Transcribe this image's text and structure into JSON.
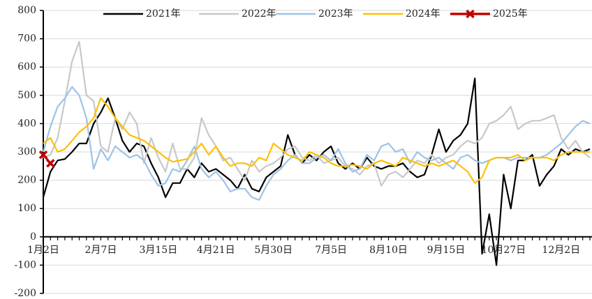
{
  "chart_data": {
    "type": "line",
    "categories": [
      "1月2日",
      null,
      null,
      null,
      null,
      null,
      null,
      null,
      "2月7日",
      null,
      null,
      null,
      null,
      null,
      null,
      null,
      "3月15日",
      null,
      null,
      null,
      null,
      null,
      null,
      null,
      "4月21日",
      null,
      null,
      null,
      null,
      null,
      null,
      null,
      "5月30日",
      null,
      null,
      null,
      null,
      null,
      null,
      null,
      "7月5日",
      null,
      null,
      null,
      null,
      null,
      null,
      null,
      "8月10日",
      null,
      null,
      null,
      null,
      null,
      null,
      null,
      "9月15日",
      null,
      null,
      null,
      null,
      null,
      null,
      null,
      "10月27日",
      null,
      null,
      null,
      null,
      null,
      null,
      null,
      "12月2日",
      null,
      null,
      null,
      null
    ],
    "series": [
      {
        "name": "2021年",
        "color": "#000000",
        "values": [
          140,
          230,
          270,
          275,
          300,
          330,
          330,
          400,
          440,
          490,
          420,
          340,
          300,
          330,
          320,
          260,
          210,
          140,
          190,
          190,
          240,
          210,
          260,
          230,
          240,
          220,
          200,
          170,
          220,
          170,
          160,
          210,
          230,
          250,
          360,
          290,
          260,
          290,
          270,
          300,
          320,
          260,
          240,
          260,
          240,
          280,
          250,
          240,
          250,
          250,
          260,
          230,
          210,
          220,
          290,
          380,
          300,
          340,
          360,
          400,
          560,
          -60,
          80,
          -100,
          220,
          100,
          270,
          270,
          290,
          180,
          220,
          250,
          310,
          290,
          310,
          300,
          310
        ]
      },
      {
        "name": "2022年",
        "color": "#c8c8c8",
        "values": [
          280,
          290,
          350,
          480,
          620,
          690,
          500,
          480,
          320,
          300,
          420,
          380,
          440,
          400,
          260,
          350,
          280,
          230,
          330,
          240,
          240,
          280,
          420,
          360,
          320,
          270,
          280,
          240,
          200,
          270,
          230,
          250,
          260,
          280,
          310,
          320,
          280,
          270,
          290,
          260,
          270,
          280,
          250,
          240,
          220,
          250,
          260,
          180,
          220,
          230,
          210,
          240,
          270,
          260,
          290,
          260,
          280,
          290,
          320,
          340,
          330,
          350,
          400,
          410,
          430,
          460,
          380,
          400,
          410,
          410,
          420,
          430,
          350,
          310,
          340,
          300,
          280
        ]
      },
      {
        "name": "2023年",
        "color": "#9dc3e6",
        "values": [
          300,
          390,
          460,
          490,
          530,
          500,
          420,
          240,
          310,
          270,
          320,
          300,
          280,
          290,
          270,
          220,
          180,
          190,
          240,
          230,
          270,
          320,
          240,
          210,
          230,
          200,
          160,
          170,
          170,
          140,
          130,
          180,
          220,
          240,
          270,
          290,
          260,
          260,
          280,
          290,
          270,
          310,
          260,
          230,
          240,
          290,
          270,
          320,
          330,
          300,
          310,
          260,
          300,
          280,
          270,
          280,
          260,
          240,
          280,
          290,
          270,
          260,
          270,
          280,
          280,
          270,
          280,
          280,
          280,
          280,
          290,
          310,
          330,
          360,
          390,
          410,
          400
        ]
      },
      {
        "name": "2024年",
        "color": "#ffc000",
        "values": [
          330,
          350,
          300,
          310,
          340,
          370,
          390,
          420,
          490,
          460,
          420,
          390,
          360,
          350,
          340,
          320,
          300,
          280,
          265,
          270,
          275,
          300,
          330,
          290,
          320,
          280,
          250,
          260,
          260,
          250,
          280,
          270,
          330,
          310,
          290,
          280,
          270,
          300,
          290,
          280,
          260,
          250,
          250,
          255,
          250,
          240,
          260,
          270,
          260,
          250,
          280,
          270,
          260,
          250,
          260,
          250,
          260,
          270,
          250,
          230,
          190,
          210,
          270,
          280,
          280,
          280,
          290,
          270,
          280,
          280,
          280,
          270,
          290,
          300,
          300,
          300,
          300
        ]
      },
      {
        "name": "2025年",
        "color": "#c00000",
        "marker": "x",
        "values": [
          290,
          260,
          null,
          null,
          null,
          null,
          null,
          null,
          null,
          null,
          null,
          null,
          null,
          null,
          null,
          null,
          null,
          null,
          null,
          null,
          null,
          null,
          null,
          null,
          null,
          null,
          null,
          null,
          null,
          null,
          null,
          null,
          null,
          null,
          null,
          null,
          null,
          null,
          null,
          null,
          null,
          null,
          null,
          null,
          null,
          null,
          null,
          null,
          null,
          null,
          null,
          null,
          null,
          null,
          null,
          null,
          null,
          null,
          null,
          null,
          null,
          null,
          null,
          null,
          null,
          null,
          null,
          null,
          null,
          null,
          null,
          null,
          null,
          null,
          null,
          null,
          null
        ]
      }
    ],
    "ylim": [
      -200,
      800
    ],
    "yticks": [
      -200,
      -100,
      0,
      100,
      200,
      300,
      400,
      500,
      600,
      700,
      800
    ],
    "grid": true,
    "legend": "top"
  }
}
